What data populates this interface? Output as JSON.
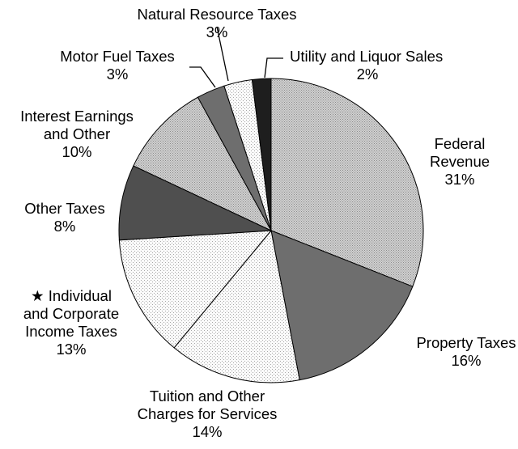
{
  "chart_data": {
    "type": "pie",
    "title": "",
    "slices": [
      {
        "label_lines": [
          "Federal",
          "Revenue"
        ],
        "value": 31,
        "value_text": "31%",
        "fill": "#c6c6c6",
        "pattern": "dots-dense"
      },
      {
        "label_lines": [
          "Property Taxes"
        ],
        "value": 16,
        "value_text": "16%",
        "fill": "#6e6e6e",
        "pattern": "solid"
      },
      {
        "label_lines": [
          "Tuition and Other",
          "Charges for Services"
        ],
        "value": 14,
        "value_text": "14%",
        "fill": "#f2f2f2",
        "pattern": "dots-light"
      },
      {
        "label_lines": [
          "★ Individual",
          "and Corporate",
          "Income Taxes"
        ],
        "value": 13,
        "value_text": "13%",
        "fill": "#f8f8f8",
        "pattern": "dots-light"
      },
      {
        "label_lines": [
          "Other Taxes"
        ],
        "value": 8,
        "value_text": "8%",
        "fill": "#4f4f4f",
        "pattern": "solid"
      },
      {
        "label_lines": [
          "Interest Earnings",
          "and Other"
        ],
        "value": 10,
        "value_text": "10%",
        "fill": "#b9b9b9",
        "pattern": "dots-dense"
      },
      {
        "label_lines": [
          "Motor Fuel Taxes"
        ],
        "value": 3,
        "value_text": "3%",
        "fill": "#6e6e6e",
        "pattern": "solid"
      },
      {
        "label_lines": [
          "Natural Resource Taxes"
        ],
        "value": 3,
        "value_text": "3%",
        "fill": "#f2f2f2",
        "pattern": "dots-light"
      },
      {
        "label_lines": [
          "Utility and Liquor Sales"
        ],
        "value": 2,
        "value_text": "2%",
        "fill": "#1e1e1e",
        "pattern": "solid"
      }
    ]
  }
}
